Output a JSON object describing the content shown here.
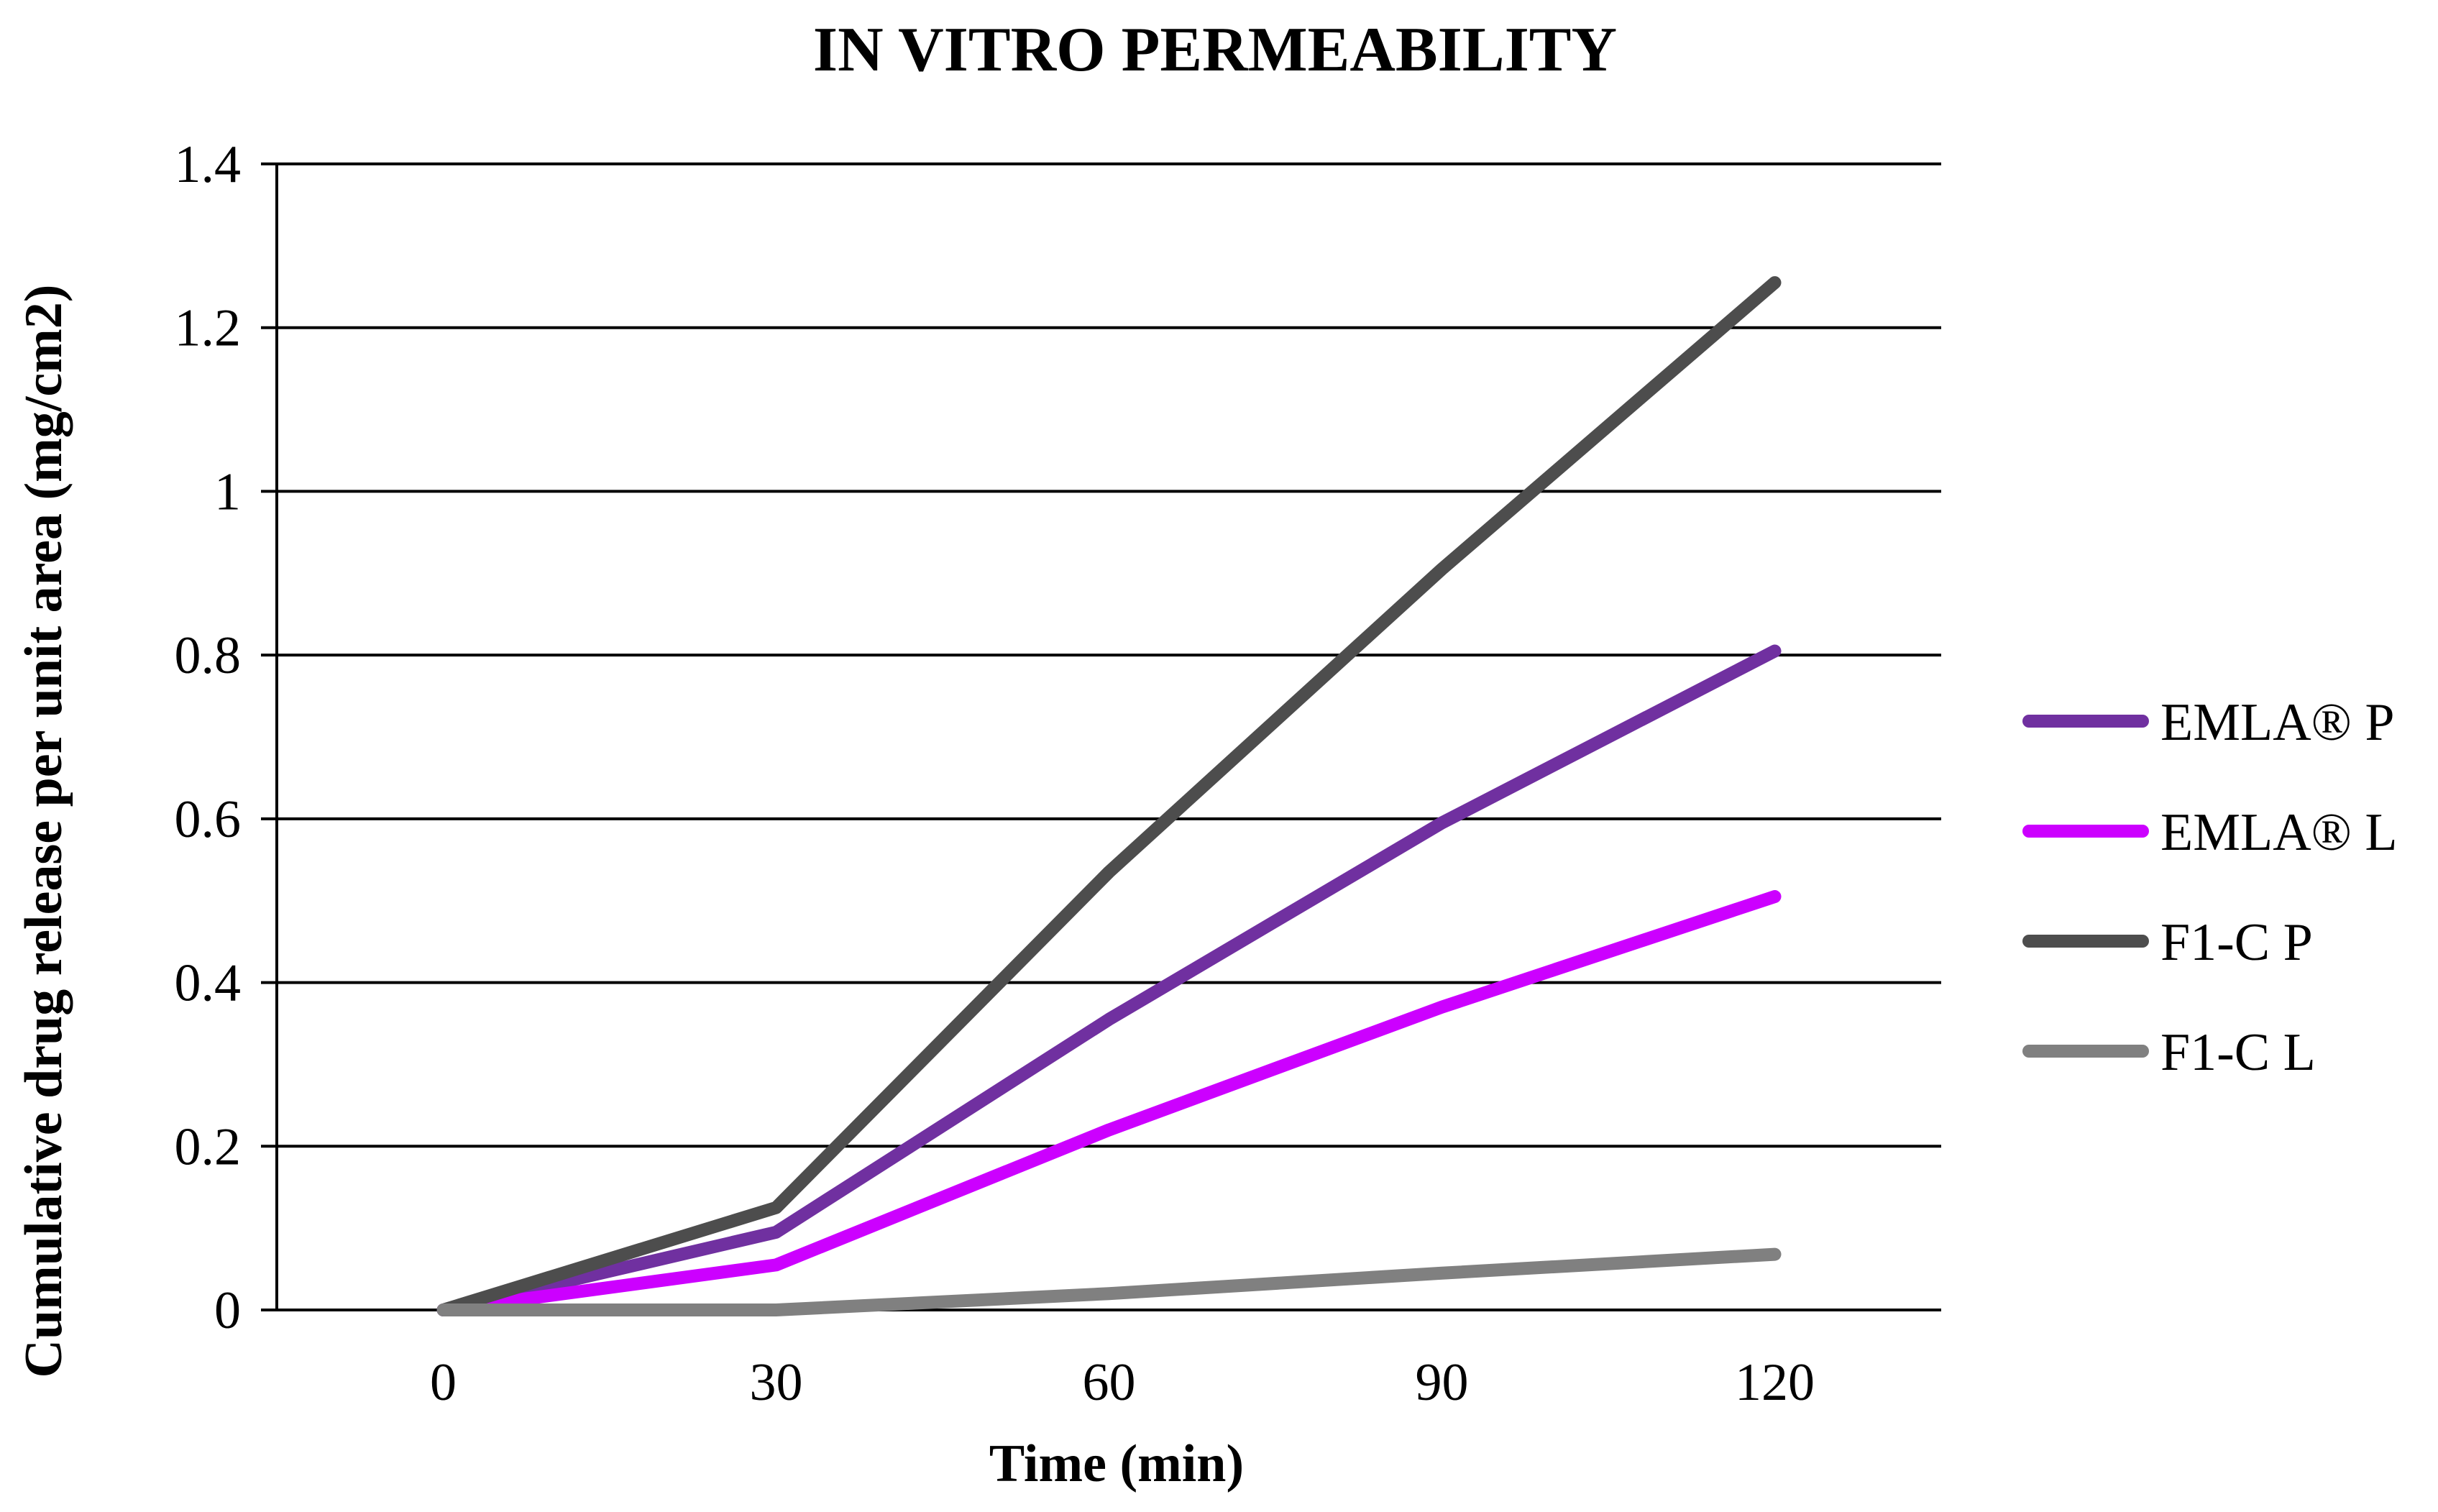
{
  "chart_data": {
    "type": "line",
    "title": "IN VITRO PERMEABILITY",
    "xlabel": "Time (min)",
    "ylabel": "Cumulative drug release per unit area (mg/cm2)",
    "x": [
      0,
      30,
      60,
      90,
      120
    ],
    "x_tick_labels": [
      "0",
      "30",
      "60",
      "90",
      "120"
    ],
    "ylim": [
      0,
      1.4
    ],
    "y_ticks": [
      0,
      0.2,
      0.4,
      0.6,
      0.8,
      1,
      1.2,
      1.4
    ],
    "y_tick_labels": [
      "0",
      "0.2",
      "0.4",
      "0.6",
      "0.8",
      "1",
      "1.2",
      "1.4"
    ],
    "grid": true,
    "legend_position": "right",
    "series": [
      {
        "name": "EMLA® P",
        "values": [
          0,
          0.095,
          0.355,
          0.595,
          0.805
        ],
        "color": "#7030a0"
      },
      {
        "name": "EMLA® L",
        "values": [
          0,
          0.055,
          0.22,
          0.37,
          0.505
        ],
        "color": "#cc00ff"
      },
      {
        "name": "F1-C P",
        "values": [
          0,
          0.125,
          0.535,
          0.905,
          1.255
        ],
        "color": "#4d4d4d"
      },
      {
        "name": "F1-C L",
        "values": [
          0,
          0.0,
          0.02,
          0.045,
          0.068
        ],
        "color": "#808080"
      }
    ]
  }
}
